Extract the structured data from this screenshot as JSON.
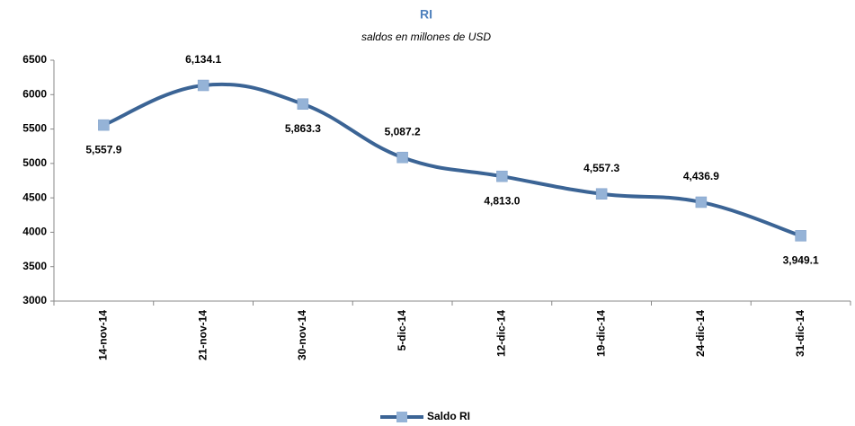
{
  "chart_data": {
    "type": "line",
    "title": "RI",
    "subtitle": "saldos en millones de USD",
    "categories": [
      "14-nov-14",
      "21-nov-14",
      "30-nov-14",
      "5-dic-14",
      "12-dic-14",
      "19-dic-14",
      "24-dic-14",
      "31-dic-14"
    ],
    "series": [
      {
        "name": "Saldo RI",
        "color": "#3b6495",
        "marker_color": "#95b3d7",
        "values": [
          5557.9,
          6134.1,
          5863.3,
          5087.2,
          4813.0,
          4557.3,
          4436.9,
          3949.1
        ],
        "value_labels": [
          "5,557.9",
          "6,134.1",
          "5,863.3",
          "5,087.2",
          "4,813.0",
          "4,557.3",
          "4,436.9",
          "3,949.1"
        ]
      }
    ],
    "ylim": [
      3000,
      6500
    ],
    "yticks": [
      3000,
      3500,
      4000,
      4500,
      5000,
      5500,
      6000,
      6500
    ],
    "grid": false,
    "legend": "bottom"
  }
}
